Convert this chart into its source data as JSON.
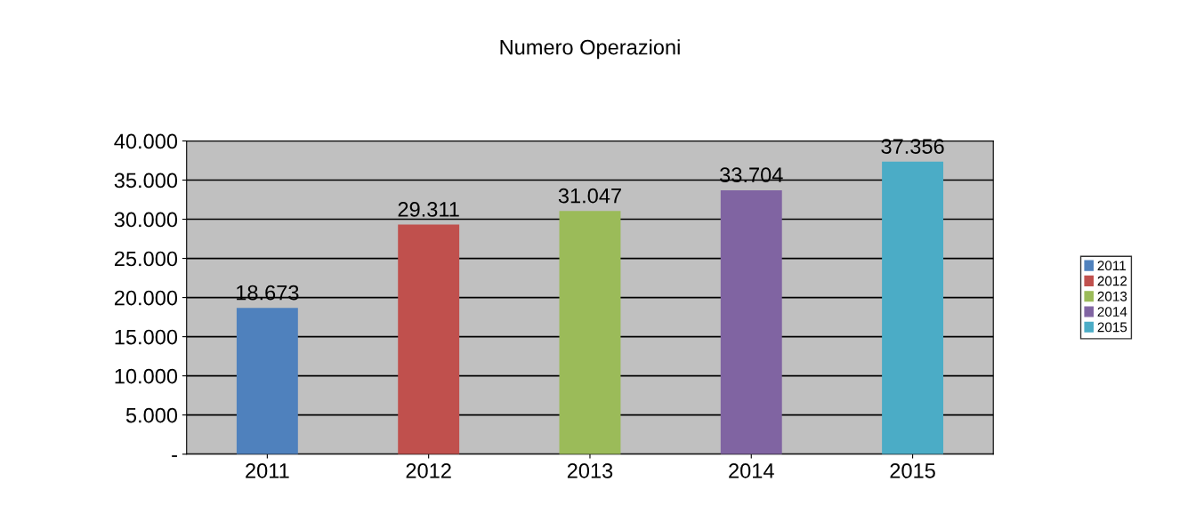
{
  "chart_data": {
    "type": "bar",
    "title": "Numero Operazioni",
    "categories": [
      "2011",
      "2012",
      "2013",
      "2014",
      "2015"
    ],
    "stacked": true,
    "series": [
      {
        "name": "2011",
        "color": "#4f81bd",
        "values": [
          18673,
          null,
          null,
          null,
          null
        ],
        "value_labels": [
          "18.673",
          null,
          null,
          null,
          null
        ]
      },
      {
        "name": "2012",
        "color": "#c0504d",
        "values": [
          null,
          29311,
          null,
          null,
          null
        ],
        "value_labels": [
          null,
          "29.311",
          null,
          null,
          null
        ]
      },
      {
        "name": "2013",
        "color": "#9bbb59",
        "values": [
          null,
          null,
          31047,
          null,
          null
        ],
        "value_labels": [
          null,
          null,
          "31.047",
          null,
          null
        ]
      },
      {
        "name": "2014",
        "color": "#8064a2",
        "values": [
          null,
          null,
          null,
          33704,
          null
        ],
        "value_labels": [
          null,
          null,
          null,
          "33.704",
          null
        ]
      },
      {
        "name": "2015",
        "color": "#4bacc6",
        "values": [
          null,
          null,
          null,
          null,
          37356
        ],
        "value_labels": [
          null,
          null,
          null,
          null,
          "37.356"
        ]
      }
    ],
    "ylim": [
      0,
      40000
    ],
    "yticks": [
      {
        "value": 0,
        "label": "-"
      },
      {
        "value": 5000,
        "label": "5.000"
      },
      {
        "value": 10000,
        "label": "10.000"
      },
      {
        "value": 15000,
        "label": "15.000"
      },
      {
        "value": 20000,
        "label": "20.000"
      },
      {
        "value": 25000,
        "label": "25.000"
      },
      {
        "value": 30000,
        "label": "30.000"
      },
      {
        "value": 35000,
        "label": "35.000"
      },
      {
        "value": 40000,
        "label": "40.000"
      }
    ],
    "grid": "y",
    "legend": "right"
  }
}
